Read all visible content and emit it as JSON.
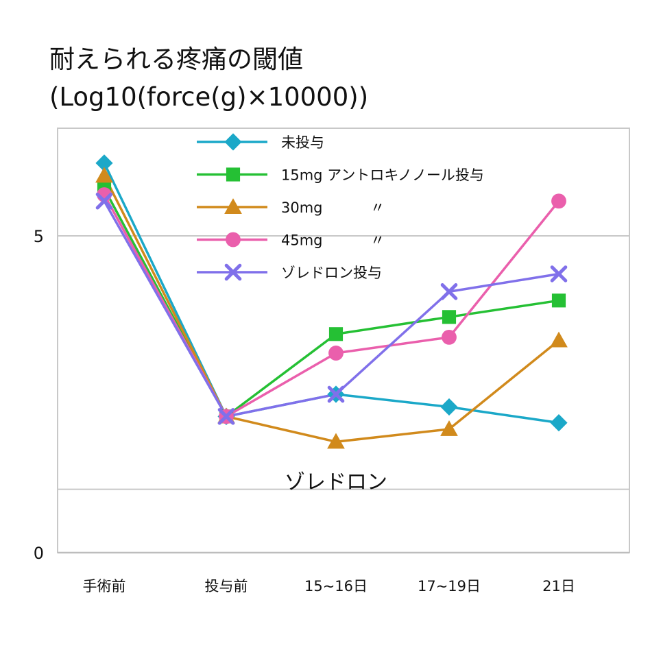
{
  "chart_data": {
    "type": "line",
    "title": "耐えられる疼痛の閾値",
    "subtitle": "(Log10(force(g)×10000))",
    "categories": [
      "手術前",
      "投与前",
      "15~16日",
      "17~19日",
      "21日"
    ],
    "y_tick_labels": [
      "0",
      "5"
    ],
    "ylim": [
      0,
      6.7
    ],
    "grid": "horizontal",
    "reference_line": 1.0,
    "legend_placement": "top",
    "annotation": "ゾレドロン",
    "series": [
      {
        "name": "未投与",
        "marker": "diamond",
        "color": "#1ba8c8",
        "values": [
          6.15,
          2.15,
          2.5,
          2.3,
          2.05
        ]
      },
      {
        "name": "15mg アントロキノノール投与",
        "marker": "square",
        "color": "#25c034",
        "values": [
          5.75,
          2.15,
          3.45,
          3.72,
          3.98
        ]
      },
      {
        "name": "30mg　　　 〃",
        "marker": "triangle",
        "color": "#d18a1c",
        "values": [
          5.95,
          2.15,
          1.75,
          1.95,
          3.35
        ]
      },
      {
        "name": "45mg　　　 〃",
        "marker": "circle",
        "color": "#ea5fac",
        "values": [
          5.65,
          2.15,
          3.15,
          3.4,
          5.55
        ]
      },
      {
        "name": "ゾレドロン投与",
        "marker": "x",
        "color": "#8070ea",
        "values": [
          5.55,
          2.15,
          2.5,
          4.12,
          4.4
        ]
      }
    ]
  }
}
